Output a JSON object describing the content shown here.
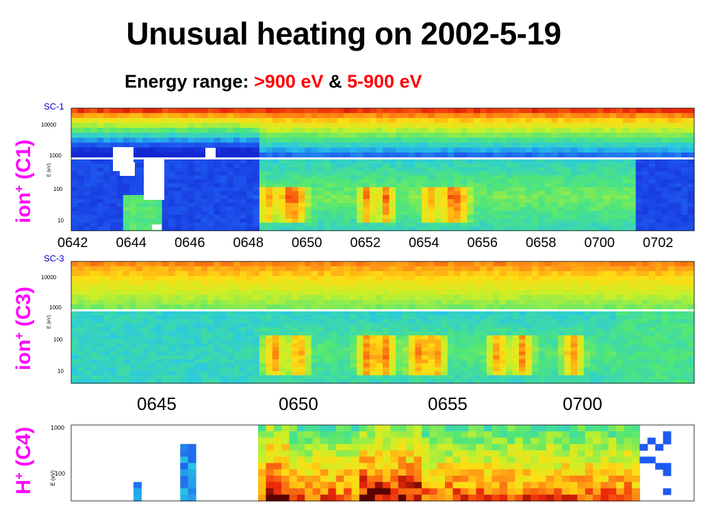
{
  "title": "Unusual heating on 2002-5-19",
  "subtitle": {
    "prefix": "Energy range:",
    "range_high": ">900 eV",
    "amp": "&",
    "range_low": "5-900 eV"
  },
  "colors": {
    "title": "#000000",
    "side_label": "#ff00ff",
    "sc_label": "#0000cc",
    "range_text": "#ff0000"
  },
  "chart_data": [
    {
      "type": "heatmap",
      "panel": "SC-1",
      "side_label": "ion+ (C1)",
      "side_label_main": "ion",
      "side_label_sup": "+",
      "side_label_tail": " (C1)",
      "ylabel": "E (eV)",
      "upper_ticks": [
        "10000",
        "1000"
      ],
      "lower_ticks": [
        "100",
        "10"
      ],
      "x_tick_labels": [
        "0642",
        "0644",
        "0646",
        "0648",
        "0650",
        "0652",
        "0654",
        "0656",
        "0658",
        "0700",
        "0702"
      ],
      "heating_interval": [
        "0648",
        "0701"
      ]
    },
    {
      "type": "heatmap",
      "panel": "SC-3",
      "side_label": "ion+ (C3)",
      "side_label_main": "ion",
      "side_label_sup": "+",
      "side_label_tail": " (C3)",
      "ylabel": "E (eV)",
      "upper_ticks": [
        "10000",
        "1000"
      ],
      "lower_ticks": [
        "100",
        "10"
      ],
      "x_tick_labels": [
        "0645",
        "0650",
        "0655",
        "0700"
      ],
      "heating_interval": [
        "0648",
        "0701"
      ]
    },
    {
      "type": "heatmap",
      "panel": "C4",
      "side_label": "H+ (C4)",
      "side_label_main": "H",
      "side_label_sup": "+",
      "side_label_tail": " (C4)",
      "ylabel": "E (eV)",
      "y_ticks": [
        "1000",
        "100"
      ],
      "heating_interval": [
        "0648",
        "0701"
      ]
    }
  ]
}
